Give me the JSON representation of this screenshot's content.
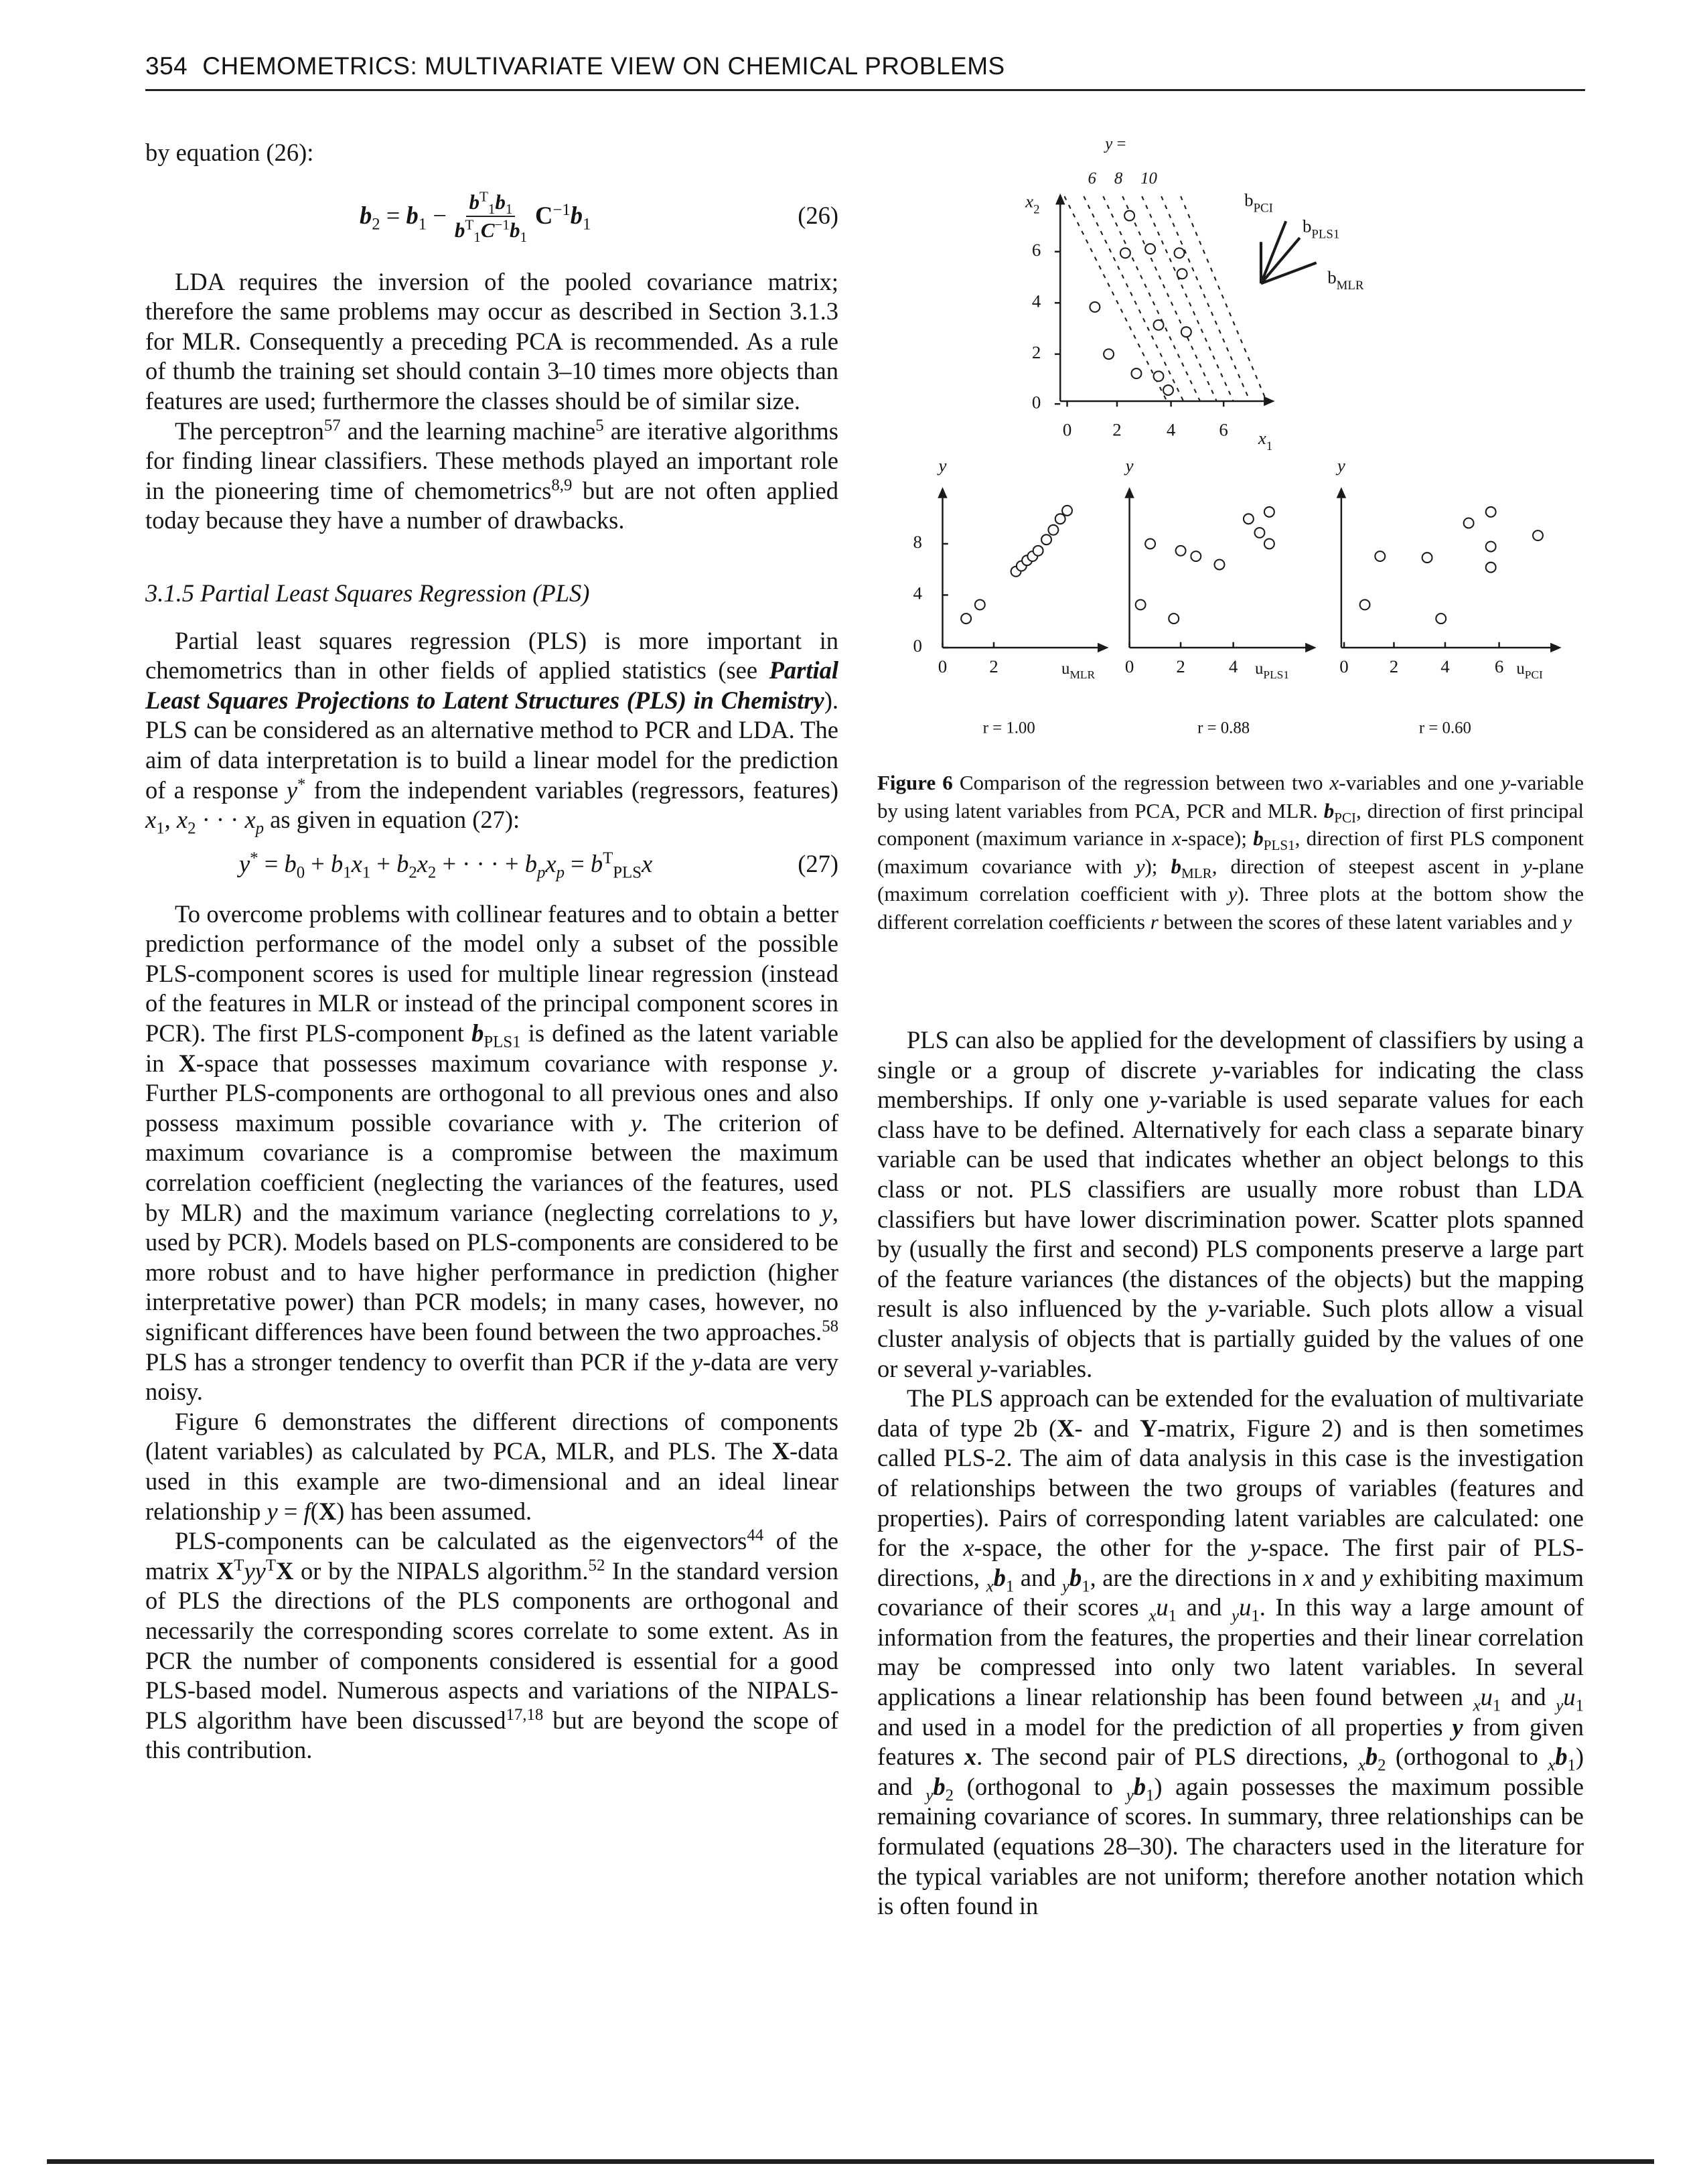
{
  "header": {
    "page_number": "354",
    "title": "CHEMOMETRICS: MULTIVARIATE VIEW ON CHEMICAL PROBLEMS"
  },
  "left_column": {
    "intro": [
      "by equation (26):"
    ],
    "eq26": {
      "lhs": [
        {
          "bi": "b"
        },
        {
          "sub": "2"
        },
        " = ",
        {
          "bi": "b"
        },
        {
          "sub": "1"
        },
        " − "
      ],
      "numerator": [
        {
          "bi": "b"
        },
        {
          "sup": "T"
        },
        {
          "sub": "1"
        },
        {
          "bi": "b"
        },
        {
          "sub": "1"
        }
      ],
      "denominator": [
        {
          "bi": "b"
        },
        {
          "sup": "T"
        },
        {
          "sub": "1"
        },
        {
          "bi": "C"
        },
        {
          "sup": "−1"
        },
        {
          "bi": "b"
        },
        {
          "sub": "1"
        }
      ],
      "rhs": [
        {
          "b": "C"
        },
        {
          "sup": "−1"
        },
        {
          "bi": "b"
        },
        {
          "sub": "1"
        }
      ],
      "number": "(26)"
    },
    "p1": [
      "LDA requires the inversion of the pooled covariance matrix; therefore the same problems may occur as described in Section 3.1.3 for MLR. Consequently a preceding PCA is recommended. As a rule of thumb the training set should contain 3–10 times more objects than features are used; furthermore the classes should be of similar size."
    ],
    "p2": [
      "The perceptron",
      {
        "sup": "57"
      },
      " and the learning machine",
      {
        "sup": "5"
      },
      " are iterative algorithms for finding linear classifiers. These methods played an important role in the pioneering time of chemometrics",
      {
        "sup": "8,9"
      },
      " but are not often applied today because they have a number of drawbacks."
    ],
    "heading": [
      {
        "i": "3.1.5   Partial Least Squares Regression (PLS)"
      }
    ],
    "p3": [
      "Partial least squares regression (PLS) is more important in chemometrics than in other fields of applied statistics (see ",
      {
        "bi": "Partial Least Squares Projections to Latent Structures (PLS) in Chemistry"
      },
      "). PLS can be considered as an alternative method to PCR and LDA. The aim of data interpretation is to build a linear model for the prediction of a response ",
      {
        "i": "y"
      },
      {
        "sup": "*"
      },
      " from the independent variables (regressors, features) ",
      {
        "i": "x"
      },
      {
        "sub": "1"
      },
      ", ",
      {
        "i": "x"
      },
      {
        "sub": "2"
      },
      " · · · ",
      {
        "i": "x"
      },
      {
        "isub": "p"
      },
      " as given in equation (27):"
    ],
    "eq27": {
      "body": [
        {
          "i": "y"
        },
        {
          "sup": "*"
        },
        " = ",
        {
          "i": "b"
        },
        {
          "sub": "0"
        },
        " + ",
        {
          "i": "b"
        },
        {
          "sub": "1"
        },
        {
          "i": "x"
        },
        {
          "sub": "1"
        },
        " + ",
        {
          "i": "b"
        },
        {
          "sub": "2"
        },
        {
          "i": "x"
        },
        {
          "sub": "2"
        },
        " + · · · + ",
        {
          "i": "b"
        },
        {
          "isub": "p"
        },
        {
          "i": "x"
        },
        {
          "isub": "p"
        },
        " = ",
        {
          "i": "b"
        },
        {
          "sup": "T"
        },
        {
          "sub": "PLS"
        },
        {
          "i": "x"
        }
      ],
      "number": "(27)"
    },
    "p4": [
      "To overcome problems with collinear features and to obtain a better prediction performance of the model only a subset of the possible PLS-component scores is used for multiple linear regression (instead of the features in MLR or instead of the principal component scores in PCR). The first PLS-component ",
      {
        "bi": "b"
      },
      {
        "sub": "PLS1"
      },
      " is defined as the latent variable in ",
      {
        "b": "X"
      },
      "-space that possesses maximum covariance with response ",
      {
        "i": "y"
      },
      ". Further PLS-components are orthogonal to all previous ones and also possess maximum possible covariance with ",
      {
        "i": "y"
      },
      ". The criterion of maximum covariance is a compromise between the maximum correlation coefficient (neglecting the variances of the features, used by MLR) and the maximum variance (neglecting correlations to ",
      {
        "i": "y"
      },
      ", used by PCR). Models based on PLS-components are considered to be more robust and to have higher performance in prediction (higher interpretative power) than PCR models; in many cases, however, no significant differences have been found between the two approaches.",
      {
        "sup": "58"
      },
      " PLS has a stronger tendency to overfit than PCR if the ",
      {
        "i": "y"
      },
      "-data are very noisy."
    ],
    "p5": [
      "Figure 6 demonstrates the different directions of components (latent variables) as calculated by PCA, MLR, and PLS. The ",
      {
        "b": "X"
      },
      "-data used in this example are two-dimensional and an ideal linear relationship ",
      {
        "i": "y"
      },
      " = ",
      {
        "i": "f"
      },
      "(",
      {
        "b": "X"
      },
      ") has been assumed."
    ],
    "p6": [
      "PLS-components can be calculated as the eigenvectors",
      {
        "sup": "44"
      },
      " of the matrix ",
      {
        "b": "X"
      },
      {
        "sup": "T"
      },
      {
        "i": "yy"
      },
      {
        "sup": "T"
      },
      {
        "b": "X"
      },
      " or by the NIPALS algorithm.",
      {
        "sup": "52"
      },
      " In the standard version of PLS the directions of the PLS components are orthogonal and necessarily the corresponding scores correlate to some extent. As in PCR the number of components considered is essential for a good PLS-based model. Numerous aspects and variations of the NIPALS-PLS algorithm have been discussed",
      {
        "sup": "17,18"
      },
      " but are beyond the scope of this contribution."
    ]
  },
  "figure": {
    "top": {
      "y_label": [
        {
          "i": "x"
        },
        {
          "sub": "2"
        }
      ],
      "yticks": [
        "0",
        "2",
        "4",
        "6"
      ],
      "xticks": [
        "0",
        "2",
        "4",
        "6"
      ],
      "x_label": [
        {
          "i": "x"
        },
        {
          "sub": "1"
        }
      ],
      "contour_title": [
        {
          "i": "y"
        },
        " ="
      ],
      "contour_labels": [
        "6",
        "8",
        "10"
      ],
      "vectors": [
        [
          "b",
          {
            "sub": "PCI"
          }
        ],
        [
          "b",
          {
            "sub": "PLS1"
          }
        ],
        [
          "b",
          {
            "sub": "MLR"
          }
        ]
      ]
    },
    "panels": [
      {
        "y_label": [
          {
            "i": "y"
          }
        ],
        "yticks": [
          "0",
          "4",
          "8"
        ],
        "xticks": [
          "0",
          "2"
        ],
        "x_label": [
          "u",
          {
            "sub": "MLR"
          }
        ],
        "r": "r = 1.00"
      },
      {
        "y_label": [
          {
            "i": "y"
          }
        ],
        "xticks": [
          "0",
          "2",
          "4"
        ],
        "x_label": [
          "u",
          {
            "sub": "PLS1"
          }
        ],
        "r": "r = 0.88"
      },
      {
        "y_label": [
          {
            "i": "y"
          }
        ],
        "xticks": [
          "0",
          "2",
          "4",
          "6"
        ],
        "x_label": [
          "u",
          {
            "sub": "PCI"
          }
        ],
        "r": "r = 0.60"
      }
    ],
    "caption": [
      {
        "b": "Figure 6"
      },
      "  Comparison of the regression between two ",
      {
        "i": "x"
      },
      "-variables and one ",
      {
        "i": "y"
      },
      "-variable by using latent variables from PCA, PCR and MLR. ",
      {
        "bi": "b"
      },
      {
        "sub": "PCI"
      },
      ", direction of first principal component (maximum variance in ",
      {
        "i": "x"
      },
      "-space); ",
      {
        "bi": "b"
      },
      {
        "sub": "PLS1"
      },
      ", direction of first PLS component (maximum covariance with ",
      {
        "i": "y"
      },
      "); ",
      {
        "bi": "b"
      },
      {
        "sub": "MLR"
      },
      ", direction of steepest ascent in ",
      {
        "i": "y"
      },
      "-plane (maximum correlation coefficient with ",
      {
        "i": "y"
      },
      "). Three plots at the bottom show the different correlation coefficients ",
      {
        "i": "r"
      },
      " between the scores of these latent variables and ",
      {
        "i": "y"
      }
    ]
  },
  "right_column": {
    "p1": [
      "PLS can also be applied for the development of classifiers by using a single or a group of discrete ",
      {
        "i": "y"
      },
      "-variables for indicating the class memberships. If only one ",
      {
        "i": "y"
      },
      "-variable is used separate values for each class have to be defined. Alternatively for each class a separate binary variable can be used that indicates whether an object belongs to this class or not. PLS classifiers are usually more robust than LDA classifiers but have lower discrimination power. Scatter plots spanned by (usually the first and second) PLS components preserve a large part of the feature variances (the distances of the objects) but the mapping result is also influenced by the ",
      {
        "i": "y"
      },
      "-variable. Such plots allow a visual cluster analysis of objects that is partially guided by the values of one or several ",
      {
        "i": "y"
      },
      "-variables."
    ],
    "p2": [
      "The PLS approach can be extended for the evaluation of multivariate data of type 2b (",
      {
        "b": "X"
      },
      "- and ",
      {
        "b": "Y"
      },
      "-matrix, Figure 2) and is then sometimes called PLS-2. The aim of data analysis in this case is the investigation of relationships between the two groups of variables (features and properties). Pairs of corresponding latent variables are calculated: one for the ",
      {
        "i": "x"
      },
      "-space, the other for the ",
      {
        "i": "y"
      },
      "-space. The first pair of PLS-directions, ",
      {
        "isub": "x"
      },
      {
        "bi": "b"
      },
      {
        "sub": "1"
      },
      " and ",
      {
        "isub": "y"
      },
      {
        "bi": "b"
      },
      {
        "sub": "1"
      },
      ", are the directions in ",
      {
        "i": "x"
      },
      " and ",
      {
        "i": "y"
      },
      " exhibiting maximum covariance of their scores ",
      {
        "isub": "x"
      },
      {
        "i": "u"
      },
      {
        "sub": "1"
      },
      " and ",
      {
        "isub": "y"
      },
      {
        "i": "u"
      },
      {
        "sub": "1"
      },
      ". In this way a large amount of information from the features, the properties and their linear correlation may be compressed into only two latent variables. In several applications a linear relationship has been found between ",
      {
        "isub": "x"
      },
      {
        "i": "u"
      },
      {
        "sub": "1"
      },
      " and ",
      {
        "isub": "y"
      },
      {
        "i": "u"
      },
      {
        "sub": "1"
      },
      " and used in a model for the prediction of all properties ",
      {
        "bi": "y"
      },
      " from given features ",
      {
        "bi": "x"
      },
      ". The second pair of PLS directions, ",
      {
        "isub": "x"
      },
      {
        "bi": "b"
      },
      {
        "sub": "2"
      },
      " (orthogonal to ",
      {
        "isub": "x"
      },
      {
        "bi": "b"
      },
      {
        "sub": "1"
      },
      ") and ",
      {
        "isub": "y"
      },
      {
        "bi": "b"
      },
      {
        "sub": "2"
      },
      " (orthogonal to ",
      {
        "isub": "y"
      },
      {
        "bi": "b"
      },
      {
        "sub": "1"
      },
      ") again possesses the maximum possible remaining covariance of scores. In summary, three relationships can be formulated (equations 28–30). The characters used in the literature for the typical variables are not uniform; therefore another notation which is often found in"
    ]
  }
}
